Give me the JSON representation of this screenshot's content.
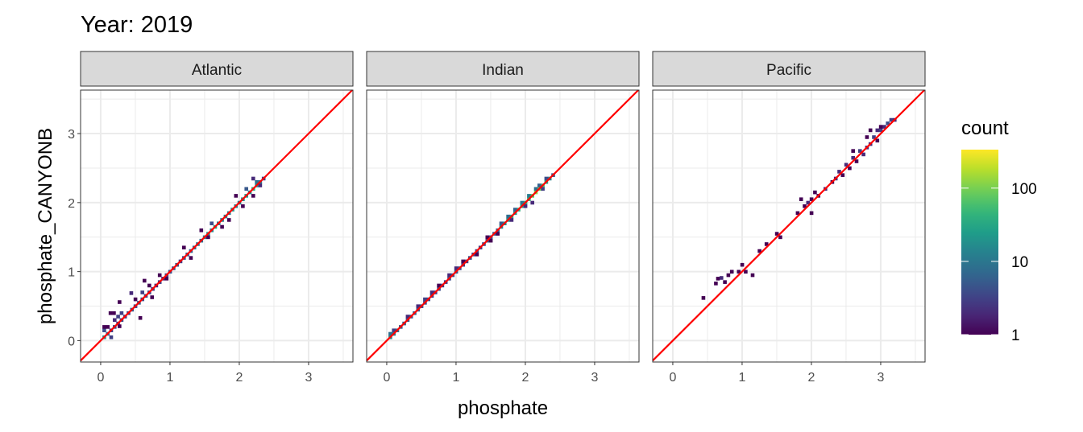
{
  "chart_data": {
    "type": "heatmap",
    "title": "Year: 2019",
    "xlabel": "phosphate",
    "ylabel": "phosphate_CANYONB",
    "xlim": [
      -0.29,
      3.64
    ],
    "ylim": [
      -0.31,
      3.63
    ],
    "x_ticks": [
      "0",
      "1",
      "2",
      "3"
    ],
    "y_ticks": [
      "0",
      "1",
      "2",
      "3"
    ],
    "grid": true,
    "bin_width": 0.05,
    "reference_line": {
      "slope": 1,
      "intercept": 0,
      "color": "#ff0000"
    },
    "legend": {
      "title": "count",
      "position": "right",
      "scale": "log10",
      "palette": "viridis",
      "limits": [
        1,
        335
      ],
      "ticks": [
        "1",
        "10",
        "100"
      ]
    },
    "facets": [
      {
        "label": "Atlantic",
        "bins": [
          [
            0.05,
            0.05,
            20
          ],
          [
            0.1,
            0.1,
            8
          ],
          [
            0.15,
            0.15,
            3
          ],
          [
            0.2,
            0.2,
            4
          ],
          [
            0.25,
            0.25,
            3
          ],
          [
            0.3,
            0.3,
            4
          ],
          [
            0.35,
            0.35,
            3
          ],
          [
            0.4,
            0.4,
            3
          ],
          [
            0.45,
            0.45,
            5
          ],
          [
            0.5,
            0.5,
            4
          ],
          [
            0.55,
            0.55,
            6
          ],
          [
            0.6,
            0.6,
            4
          ],
          [
            0.65,
            0.65,
            4
          ],
          [
            0.7,
            0.7,
            3
          ],
          [
            0.75,
            0.75,
            3
          ],
          [
            0.8,
            0.8,
            2
          ],
          [
            0.85,
            0.85,
            3
          ],
          [
            0.9,
            0.9,
            2
          ],
          [
            0.95,
            0.95,
            3
          ],
          [
            1.0,
            1.0,
            4
          ],
          [
            1.05,
            1.05,
            4
          ],
          [
            1.1,
            1.1,
            5
          ],
          [
            1.15,
            1.15,
            3
          ],
          [
            1.2,
            1.2,
            4
          ],
          [
            1.25,
            1.25,
            5
          ],
          [
            1.3,
            1.3,
            6
          ],
          [
            1.35,
            1.35,
            8
          ],
          [
            1.4,
            1.4,
            10
          ],
          [
            1.45,
            1.45,
            8
          ],
          [
            1.5,
            1.5,
            12
          ],
          [
            1.55,
            1.55,
            20
          ],
          [
            1.6,
            1.6,
            15
          ],
          [
            1.65,
            1.65,
            30
          ],
          [
            1.7,
            1.7,
            12
          ],
          [
            1.75,
            1.75,
            12
          ],
          [
            1.8,
            1.8,
            15
          ],
          [
            1.85,
            1.85,
            12
          ],
          [
            1.9,
            1.9,
            20
          ],
          [
            1.95,
            1.95,
            15
          ],
          [
            2.0,
            2.0,
            12
          ],
          [
            2.05,
            2.05,
            20
          ],
          [
            2.1,
            2.1,
            25
          ],
          [
            2.15,
            2.15,
            15
          ],
          [
            2.2,
            2.2,
            40
          ],
          [
            2.25,
            2.25,
            20
          ],
          [
            2.3,
            2.3,
            10
          ],
          [
            2.35,
            2.35,
            3
          ],
          [
            0.05,
            0.15,
            4
          ],
          [
            0.05,
            0.2,
            1
          ],
          [
            0.1,
            0.2,
            1
          ],
          [
            0.15,
            0.05,
            3
          ],
          [
            0.2,
            0.3,
            2
          ],
          [
            0.25,
            0.35,
            3
          ],
          [
            0.3,
            0.4,
            3
          ],
          [
            0.14,
            0.4,
            1
          ],
          [
            0.19,
            0.4,
            1
          ],
          [
            0.27,
            0.21,
            1
          ],
          [
            0.27,
            0.56,
            1
          ],
          [
            0.44,
            0.69,
            2
          ],
          [
            0.63,
            0.87,
            1
          ],
          [
            0.57,
            0.33,
            1
          ],
          [
            0.74,
            0.63,
            1
          ],
          [
            0.5,
            0.6,
            1
          ],
          [
            0.6,
            0.7,
            3
          ],
          [
            0.7,
            0.8,
            1
          ],
          [
            0.85,
            0.95,
            1
          ],
          [
            0.95,
            0.9,
            1
          ],
          [
            1.2,
            1.35,
            1
          ],
          [
            1.3,
            1.2,
            1
          ],
          [
            1.45,
            1.6,
            1
          ],
          [
            1.55,
            1.5,
            1
          ],
          [
            1.6,
            1.7,
            4
          ],
          [
            1.75,
            1.65,
            1
          ],
          [
            1.85,
            1.75,
            1
          ],
          [
            1.95,
            2.1,
            1
          ],
          [
            2.05,
            1.95,
            1
          ],
          [
            2.1,
            2.2,
            5
          ],
          [
            2.2,
            2.1,
            1
          ],
          [
            2.2,
            2.35,
            2
          ],
          [
            2.3,
            2.25,
            2
          ],
          [
            2.25,
            2.3,
            8
          ]
        ]
      },
      {
        "label": "Indian",
        "bins": [
          [
            0.05,
            0.05,
            15
          ],
          [
            0.1,
            0.1,
            10
          ],
          [
            0.15,
            0.15,
            8
          ],
          [
            0.2,
            0.2,
            6
          ],
          [
            0.25,
            0.25,
            6
          ],
          [
            0.3,
            0.3,
            5
          ],
          [
            0.35,
            0.35,
            5
          ],
          [
            0.4,
            0.4,
            6
          ],
          [
            0.45,
            0.45,
            5
          ],
          [
            0.5,
            0.5,
            4
          ],
          [
            0.55,
            0.55,
            4
          ],
          [
            0.6,
            0.6,
            4
          ],
          [
            0.65,
            0.65,
            3
          ],
          [
            0.7,
            0.7,
            3
          ],
          [
            0.75,
            0.75,
            4
          ],
          [
            0.8,
            0.8,
            3
          ],
          [
            0.85,
            0.85,
            3
          ],
          [
            0.9,
            0.9,
            4
          ],
          [
            0.95,
            0.95,
            4
          ],
          [
            1.0,
            1.0,
            5
          ],
          [
            1.05,
            1.05,
            4
          ],
          [
            1.1,
            1.1,
            3
          ],
          [
            1.15,
            1.15,
            3
          ],
          [
            1.2,
            1.2,
            4
          ],
          [
            1.25,
            1.25,
            3
          ],
          [
            1.3,
            1.3,
            3
          ],
          [
            1.35,
            1.35,
            3
          ],
          [
            1.4,
            1.4,
            4
          ],
          [
            1.45,
            1.45,
            5
          ],
          [
            1.5,
            1.5,
            4
          ],
          [
            1.55,
            1.55,
            5
          ],
          [
            1.6,
            1.6,
            6
          ],
          [
            1.65,
            1.65,
            15
          ],
          [
            1.7,
            1.7,
            20
          ],
          [
            1.75,
            1.75,
            25
          ],
          [
            1.8,
            1.8,
            30
          ],
          [
            1.85,
            1.85,
            25
          ],
          [
            1.9,
            1.9,
            40
          ],
          [
            1.95,
            1.95,
            30
          ],
          [
            2.0,
            2.0,
            40
          ],
          [
            2.05,
            2.05,
            50
          ],
          [
            2.1,
            2.1,
            80
          ],
          [
            2.15,
            2.15,
            120
          ],
          [
            2.2,
            2.2,
            100
          ],
          [
            2.25,
            2.25,
            60
          ],
          [
            2.3,
            2.3,
            30
          ],
          [
            2.35,
            2.35,
            15
          ],
          [
            2.4,
            2.4,
            5
          ],
          [
            0.05,
            0.1,
            8
          ],
          [
            0.1,
            0.15,
            3
          ],
          [
            0.3,
            0.35,
            2
          ],
          [
            0.45,
            0.5,
            2
          ],
          [
            0.55,
            0.6,
            3
          ],
          [
            0.65,
            0.7,
            2
          ],
          [
            0.75,
            0.8,
            1
          ],
          [
            0.9,
            0.95,
            2
          ],
          [
            1.0,
            1.05,
            2
          ],
          [
            1.1,
            1.15,
            1
          ],
          [
            1.3,
            1.25,
            1
          ],
          [
            1.45,
            1.5,
            1
          ],
          [
            1.5,
            1.45,
            1
          ],
          [
            1.6,
            1.55,
            1
          ],
          [
            1.65,
            1.7,
            5
          ],
          [
            1.75,
            1.8,
            8
          ],
          [
            1.85,
            1.9,
            6
          ],
          [
            1.95,
            2.0,
            10
          ],
          [
            2.05,
            2.1,
            12
          ],
          [
            2.15,
            2.2,
            8
          ],
          [
            2.2,
            2.25,
            6
          ],
          [
            2.3,
            2.35,
            4
          ],
          [
            2.1,
            2.0,
            2
          ],
          [
            2.25,
            2.2,
            3
          ],
          [
            1.8,
            1.75,
            2
          ],
          [
            2.0,
            1.95,
            2
          ]
        ]
      },
      {
        "label": "Pacific",
        "bins": [
          [
            0.44,
            0.62,
            1
          ],
          [
            0.62,
            0.83,
            1
          ],
          [
            0.65,
            0.9,
            1
          ],
          [
            0.7,
            0.91,
            2
          ],
          [
            0.75,
            0.85,
            1
          ],
          [
            0.8,
            0.95,
            1
          ],
          [
            0.85,
            1.0,
            1
          ],
          [
            0.95,
            1.0,
            1
          ],
          [
            1.0,
            1.1,
            1
          ],
          [
            1.05,
            1.0,
            1
          ],
          [
            1.15,
            0.95,
            1
          ],
          [
            1.25,
            1.3,
            1
          ],
          [
            1.35,
            1.4,
            1
          ],
          [
            1.5,
            1.55,
            1
          ],
          [
            1.55,
            1.5,
            1
          ],
          [
            1.8,
            1.85,
            1
          ],
          [
            1.85,
            2.05,
            1
          ],
          [
            1.9,
            1.95,
            1
          ],
          [
            1.95,
            2.0,
            2
          ],
          [
            2.0,
            2.05,
            1
          ],
          [
            2.0,
            1.85,
            1
          ],
          [
            2.05,
            2.15,
            1
          ],
          [
            2.1,
            2.1,
            1
          ],
          [
            2.2,
            2.2,
            2
          ],
          [
            2.3,
            2.3,
            1
          ],
          [
            2.35,
            2.35,
            2
          ],
          [
            2.4,
            2.45,
            2
          ],
          [
            2.45,
            2.4,
            1
          ],
          [
            2.5,
            2.55,
            2
          ],
          [
            2.55,
            2.5,
            1
          ],
          [
            2.6,
            2.65,
            2
          ],
          [
            2.65,
            2.6,
            1
          ],
          [
            2.7,
            2.75,
            3
          ],
          [
            2.75,
            2.7,
            2
          ],
          [
            2.8,
            2.8,
            2
          ],
          [
            2.8,
            2.95,
            1
          ],
          [
            2.85,
            2.85,
            2
          ],
          [
            2.9,
            2.95,
            3
          ],
          [
            2.95,
            3.05,
            2
          ],
          [
            2.95,
            2.9,
            1
          ],
          [
            3.0,
            3.05,
            3
          ],
          [
            3.05,
            3.1,
            2
          ],
          [
            3.1,
            3.15,
            4
          ],
          [
            3.15,
            3.2,
            3
          ],
          [
            3.2,
            3.2,
            2
          ],
          [
            3.0,
            3.1,
            1
          ],
          [
            2.85,
            3.05,
            1
          ],
          [
            2.6,
            2.75,
            1
          ]
        ]
      }
    ]
  }
}
